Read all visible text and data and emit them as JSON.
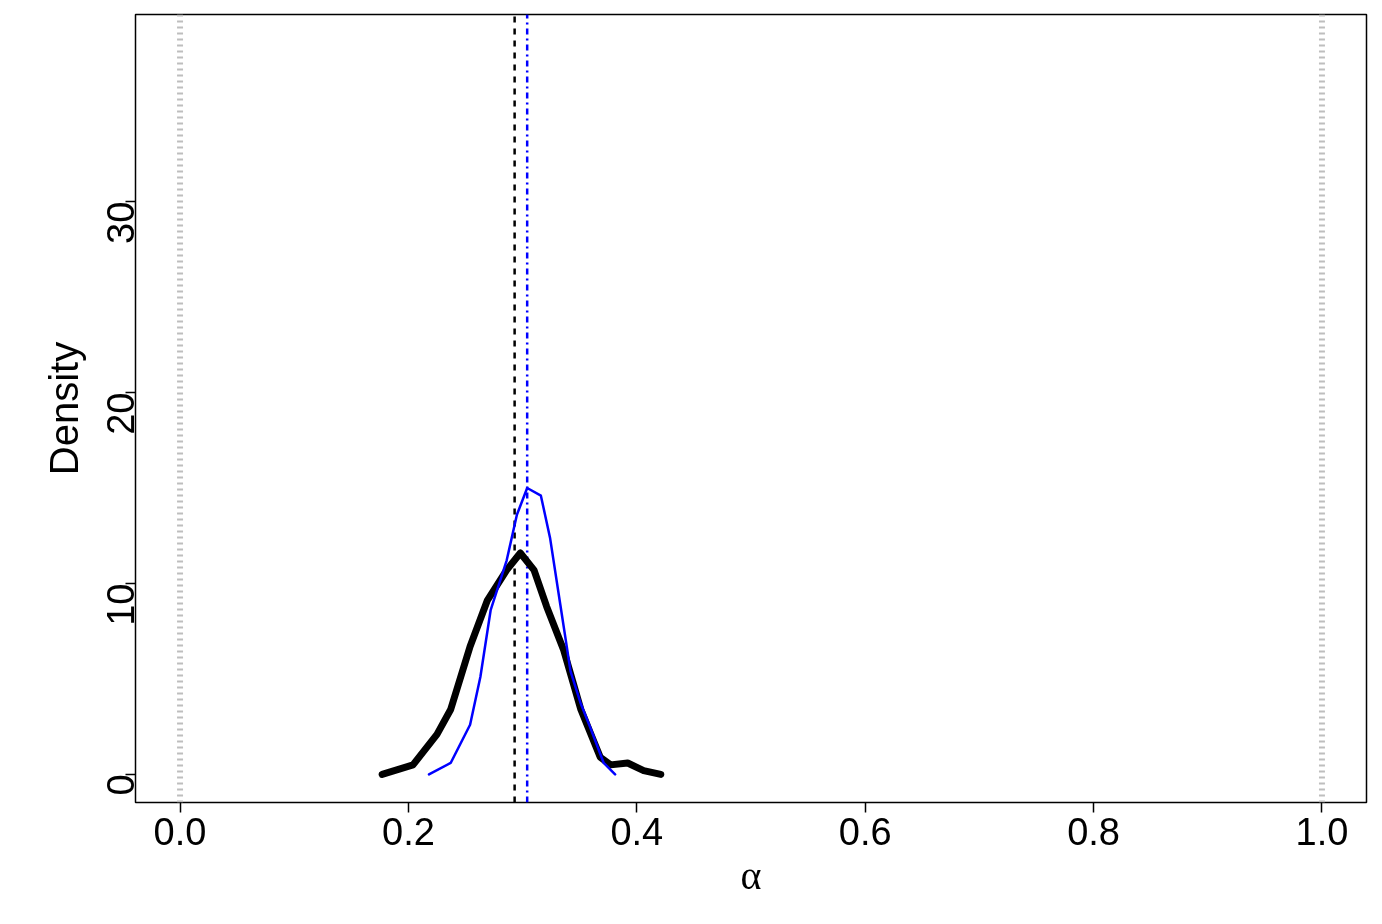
{
  "chart_data": {
    "type": "line",
    "xlabel": "α",
    "ylabel": "Density",
    "xlim": [
      -0.039,
      1.039
    ],
    "ylim": [
      -1.47,
      39.8
    ],
    "xticks": [
      {
        "value": 0,
        "label": "0.0"
      },
      {
        "value": 0.2,
        "label": "0.2"
      },
      {
        "value": 0.4,
        "label": "0.4"
      },
      {
        "value": 0.6,
        "label": "0.6"
      },
      {
        "value": 0.8,
        "label": "0.8"
      },
      {
        "value": 1,
        "label": "1.0"
      }
    ],
    "yticks": [
      0,
      10,
      20,
      30
    ],
    "grid": false,
    "series": [
      {
        "color": "#000000",
        "x": [
          0.177,
          0.204,
          0.225,
          0.237,
          0.254,
          0.269,
          0.286,
          0.298,
          0.31,
          0.321,
          0.336,
          0.351,
          0.368,
          0.377,
          0.392,
          0.406,
          0.421
        ],
        "values": [
          0.0,
          0.5,
          2.1,
          3.4,
          6.7,
          9.1,
          10.7,
          11.6,
          10.7,
          8.8,
          6.5,
          3.4,
          0.9,
          0.5,
          0.6,
          0.2,
          0.0
        ]
      },
      {
        "color": "#0000ff",
        "x": [
          0.218,
          0.237,
          0.254,
          0.263,
          0.272,
          0.286,
          0.295,
          0.304,
          0.316,
          0.324,
          0.333,
          0.342,
          0.351,
          0.359,
          0.371,
          0.381
        ],
        "values": [
          0.0,
          0.6,
          2.6,
          5.1,
          8.6,
          11.2,
          13.6,
          15.0,
          14.6,
          12.4,
          8.9,
          5.4,
          3.7,
          2.5,
          0.6,
          0.0
        ]
      }
    ],
    "ref_lines": [
      {
        "axis": "x",
        "value": 0,
        "color": "#bebebe",
        "line_style": "dotted"
      },
      {
        "axis": "x",
        "value": 1,
        "color": "#bebebe",
        "line_style": "dotted"
      },
      {
        "axis": "x",
        "value": 0.293,
        "color": "#000000",
        "line_style": "dashed"
      },
      {
        "axis": "x",
        "value": 0.304,
        "color": "#0000ff",
        "line_style": "dashdot"
      }
    ]
  }
}
